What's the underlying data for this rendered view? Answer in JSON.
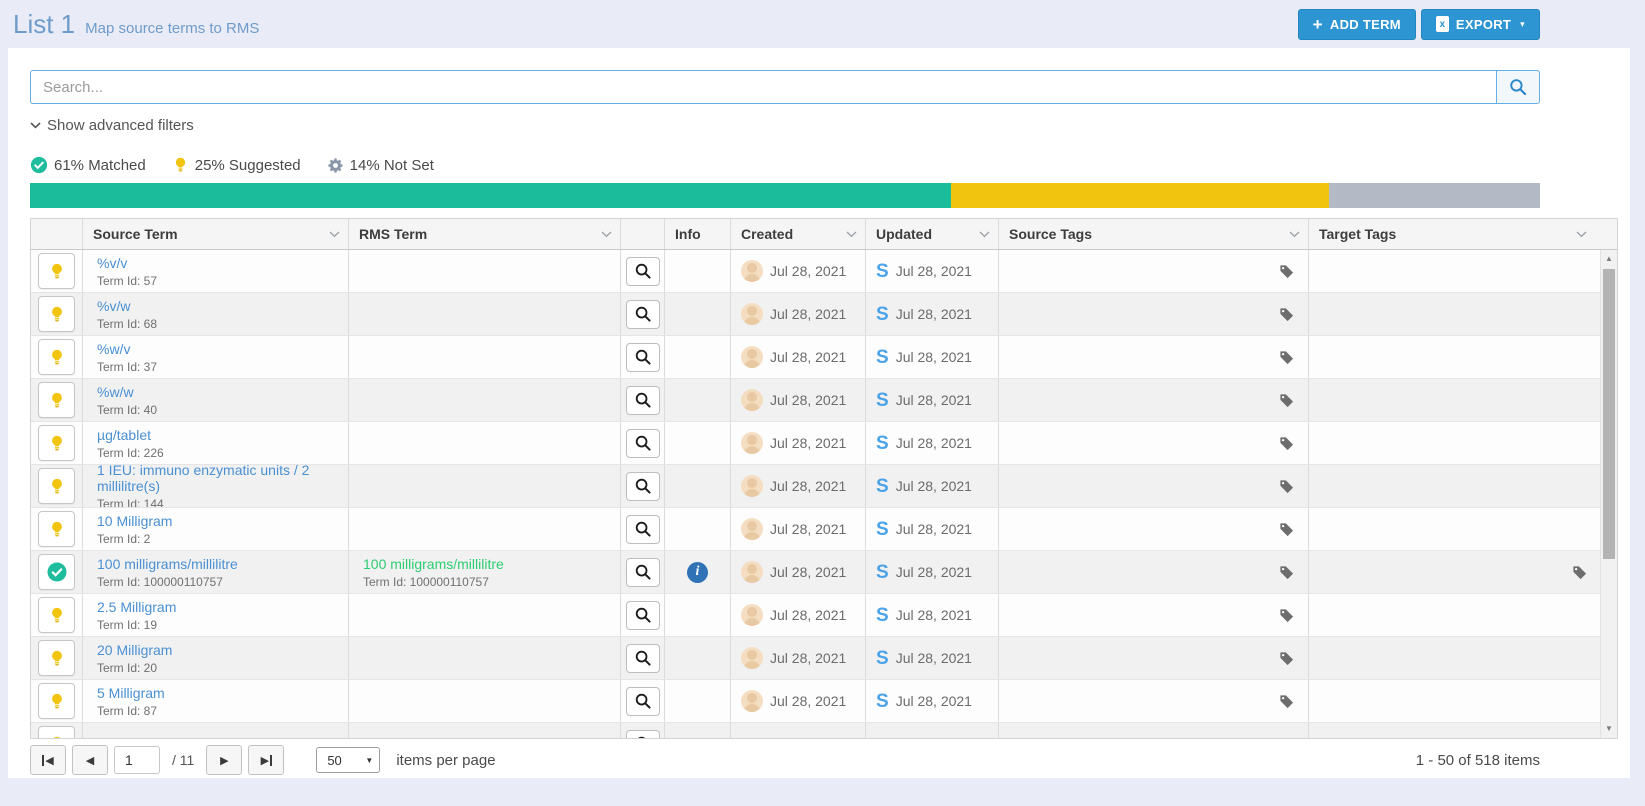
{
  "header": {
    "title": "List 1",
    "subtitle": "Map source terms to RMS",
    "buttons": {
      "add_term": "ADD TERM",
      "export": "EXPORT"
    }
  },
  "search": {
    "placeholder": "Search..."
  },
  "filters_toggle": "Show advanced filters",
  "stats": {
    "matched": {
      "percent": 61,
      "label": "61% Matched",
      "color": "#1abc9c"
    },
    "suggested": {
      "percent": 25,
      "label": "25% Suggested",
      "color": "#f1c40f"
    },
    "not_set": {
      "percent": 14,
      "label": "14% Not Set",
      "color": "#b3bac6"
    }
  },
  "table": {
    "headers": {
      "source_term": "Source Term",
      "rms_term": "RMS Term",
      "info": "Info",
      "created": "Created",
      "updated": "Updated",
      "source_tags": "Source Tags",
      "target_tags": "Target Tags"
    },
    "rows": [
      {
        "status": "suggested",
        "source_term": "%v/v",
        "source_term_id": "Term Id: 57",
        "rms_term": "",
        "rms_term_id": "",
        "has_info": false,
        "created": "Jul 28, 2021",
        "updated": "Jul 28, 2021",
        "has_source_tag": true,
        "has_target_tag": false
      },
      {
        "status": "suggested",
        "source_term": "%v/w",
        "source_term_id": "Term Id: 68",
        "rms_term": "",
        "rms_term_id": "",
        "has_info": false,
        "created": "Jul 28, 2021",
        "updated": "Jul 28, 2021",
        "has_source_tag": true,
        "has_target_tag": false
      },
      {
        "status": "suggested",
        "source_term": "%w/v",
        "source_term_id": "Term Id: 37",
        "rms_term": "",
        "rms_term_id": "",
        "has_info": false,
        "created": "Jul 28, 2021",
        "updated": "Jul 28, 2021",
        "has_source_tag": true,
        "has_target_tag": false
      },
      {
        "status": "suggested",
        "source_term": "%w/w",
        "source_term_id": "Term Id: 40",
        "rms_term": "",
        "rms_term_id": "",
        "has_info": false,
        "created": "Jul 28, 2021",
        "updated": "Jul 28, 2021",
        "has_source_tag": true,
        "has_target_tag": false
      },
      {
        "status": "suggested",
        "source_term": "µg/tablet",
        "source_term_id": "Term Id: 226",
        "rms_term": "",
        "rms_term_id": "",
        "has_info": false,
        "created": "Jul 28, 2021",
        "updated": "Jul 28, 2021",
        "has_source_tag": true,
        "has_target_tag": false
      },
      {
        "status": "suggested",
        "source_term": "1 IEU: immuno enzymatic units / 2 millilitre(s)",
        "source_term_id": "Term Id: 144",
        "rms_term": "",
        "rms_term_id": "",
        "has_info": false,
        "created": "Jul 28, 2021",
        "updated": "Jul 28, 2021",
        "has_source_tag": true,
        "has_target_tag": false
      },
      {
        "status": "suggested",
        "source_term": "10 Milligram",
        "source_term_id": "Term Id: 2",
        "rms_term": "",
        "rms_term_id": "",
        "has_info": false,
        "created": "Jul 28, 2021",
        "updated": "Jul 28, 2021",
        "has_source_tag": true,
        "has_target_tag": false
      },
      {
        "status": "matched",
        "source_term": "100 milligrams/millilitre",
        "source_term_id": "Term Id: 100000110757",
        "rms_term": "100 milligrams/millilitre",
        "rms_term_id": "Term Id: 100000110757",
        "has_info": true,
        "created": "Jul 28, 2021",
        "updated": "Jul 28, 2021",
        "has_source_tag": true,
        "has_target_tag": true
      },
      {
        "status": "suggested",
        "source_term": "2.5 Milligram",
        "source_term_id": "Term Id: 19",
        "rms_term": "",
        "rms_term_id": "",
        "has_info": false,
        "created": "Jul 28, 2021",
        "updated": "Jul 28, 2021",
        "has_source_tag": true,
        "has_target_tag": false
      },
      {
        "status": "suggested",
        "source_term": "20 Milligram",
        "source_term_id": "Term Id: 20",
        "rms_term": "",
        "rms_term_id": "",
        "has_info": false,
        "created": "Jul 28, 2021",
        "updated": "Jul 28, 2021",
        "has_source_tag": true,
        "has_target_tag": false
      },
      {
        "status": "suggested",
        "source_term": "5 Milligram",
        "source_term_id": "Term Id: 87",
        "rms_term": "",
        "rms_term_id": "",
        "has_info": false,
        "created": "Jul 28, 2021",
        "updated": "Jul 28, 2021",
        "has_source_tag": true,
        "has_target_tag": false
      },
      {
        "status": "suggested",
        "source_term": "",
        "source_term_id": "",
        "rms_term": "",
        "rms_term_id": "",
        "has_info": false,
        "created": "",
        "updated": "",
        "has_source_tag": false,
        "has_target_tag": false
      }
    ]
  },
  "pagination": {
    "page": "1",
    "total_label": "/ 11",
    "page_size": "50",
    "items_per_page_label": "items per page",
    "range_label": "1 - 50 of 518 items"
  }
}
